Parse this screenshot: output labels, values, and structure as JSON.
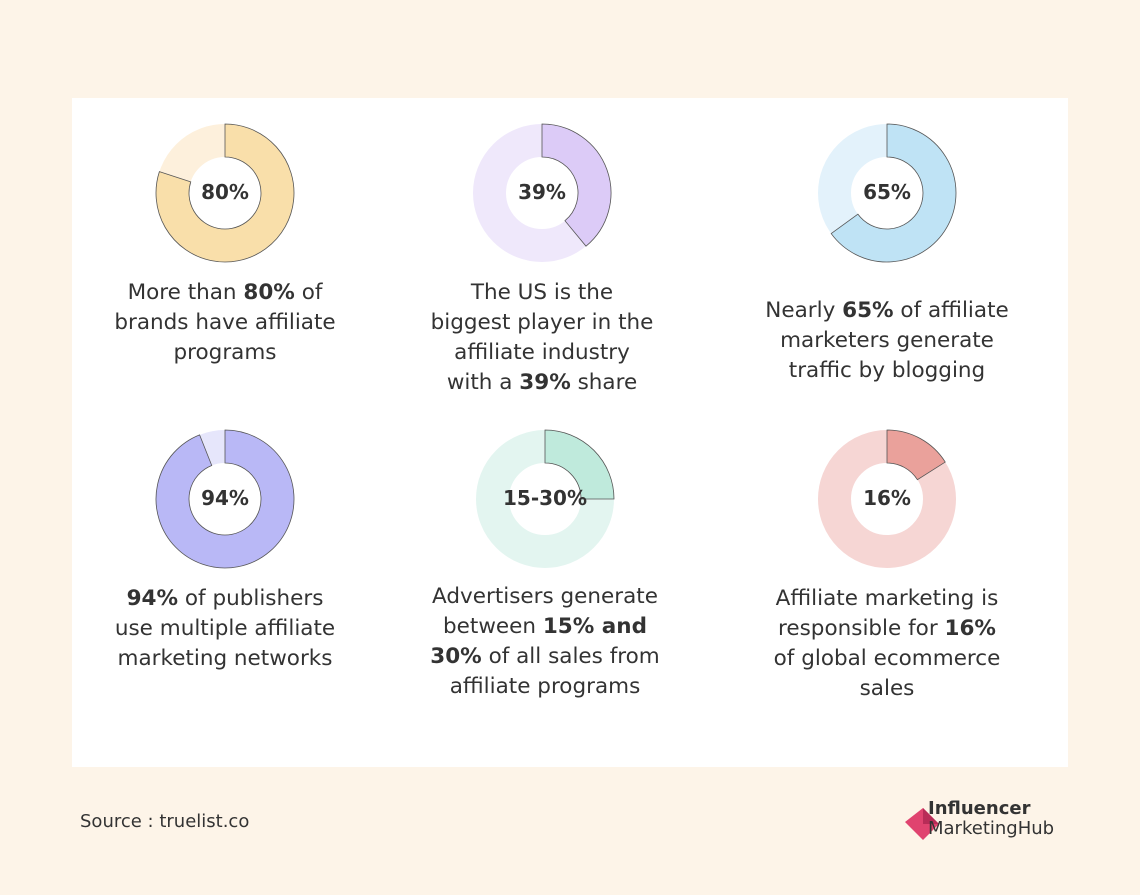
{
  "chart_data": [
    {
      "type": "pie",
      "value": 80,
      "label": "80%",
      "fill_color": "#f9dfaa",
      "track_color": "#fdf0dc",
      "caption": [
        [
          {
            "t": "More than "
          },
          {
            "t": "80%",
            "b": true
          },
          {
            "t": " of"
          }
        ],
        [
          {
            "t": "brands have affiliate"
          }
        ],
        [
          {
            "t": "programs"
          }
        ]
      ]
    },
    {
      "type": "pie",
      "value": 39,
      "label": "39%",
      "fill_color": "#dccbf7",
      "track_color": "#efe8fb",
      "caption": [
        [
          {
            "t": "The US  is the"
          }
        ],
        [
          {
            "t": "biggest player in the"
          }
        ],
        [
          {
            "t": "affiliate industry"
          }
        ],
        [
          {
            "t": "with a "
          },
          {
            "t": "39%",
            "b": true
          },
          {
            "t": " share"
          }
        ]
      ]
    },
    {
      "type": "pie",
      "value": 65,
      "label": "65%",
      "fill_color": "#bfe3f5",
      "track_color": "#e3f2fb",
      "caption": [
        [
          {
            "t": "Nearly "
          },
          {
            "t": "65%",
            "b": true
          },
          {
            "t": " of affiliate"
          }
        ],
        [
          {
            "t": "marketers generate"
          }
        ],
        [
          {
            "t": "traffic by blogging"
          }
        ]
      ]
    },
    {
      "type": "pie",
      "value": 94,
      "label": "94%",
      "fill_color": "#b9b8f6",
      "track_color": "#e6e6fb",
      "caption": [
        [
          {
            "t": "94%",
            "b": true
          },
          {
            "t": " of publishers"
          }
        ],
        [
          {
            "t": "use multiple affiliate"
          }
        ],
        [
          {
            "t": "marketing networks"
          }
        ]
      ]
    },
    {
      "type": "pie",
      "value": 25,
      "label": "15-30%",
      "fill_color": "#bfeadc",
      "track_color": "#e3f5f0",
      "caption": [
        [
          {
            "t": "Advertisers generate"
          }
        ],
        [
          {
            "t": "between "
          },
          {
            "t": "15% and",
            "b": true
          }
        ],
        [
          {
            "t": "30%",
            "b": true
          },
          {
            "t": " of all sales from"
          }
        ],
        [
          {
            "t": "affiliate programs"
          }
        ]
      ]
    },
    {
      "type": "pie",
      "value": 16,
      "label": "16%",
      "fill_color": "#eaa19b",
      "track_color": "#f6d6d4",
      "caption": [
        [
          {
            "t": "Affiliate marketing is"
          }
        ],
        [
          {
            "t": "responsible for "
          },
          {
            "t": "16%",
            "b": true
          }
        ],
        [
          {
            "t": "of global ecommerce"
          }
        ],
        [
          {
            "t": "sales"
          }
        ]
      ]
    }
  ],
  "footer": {
    "source": "Source : truelist.co",
    "logo_line1": "Influencer",
    "logo_line2": "MarketingHub",
    "logo_color": "#e0436f"
  }
}
